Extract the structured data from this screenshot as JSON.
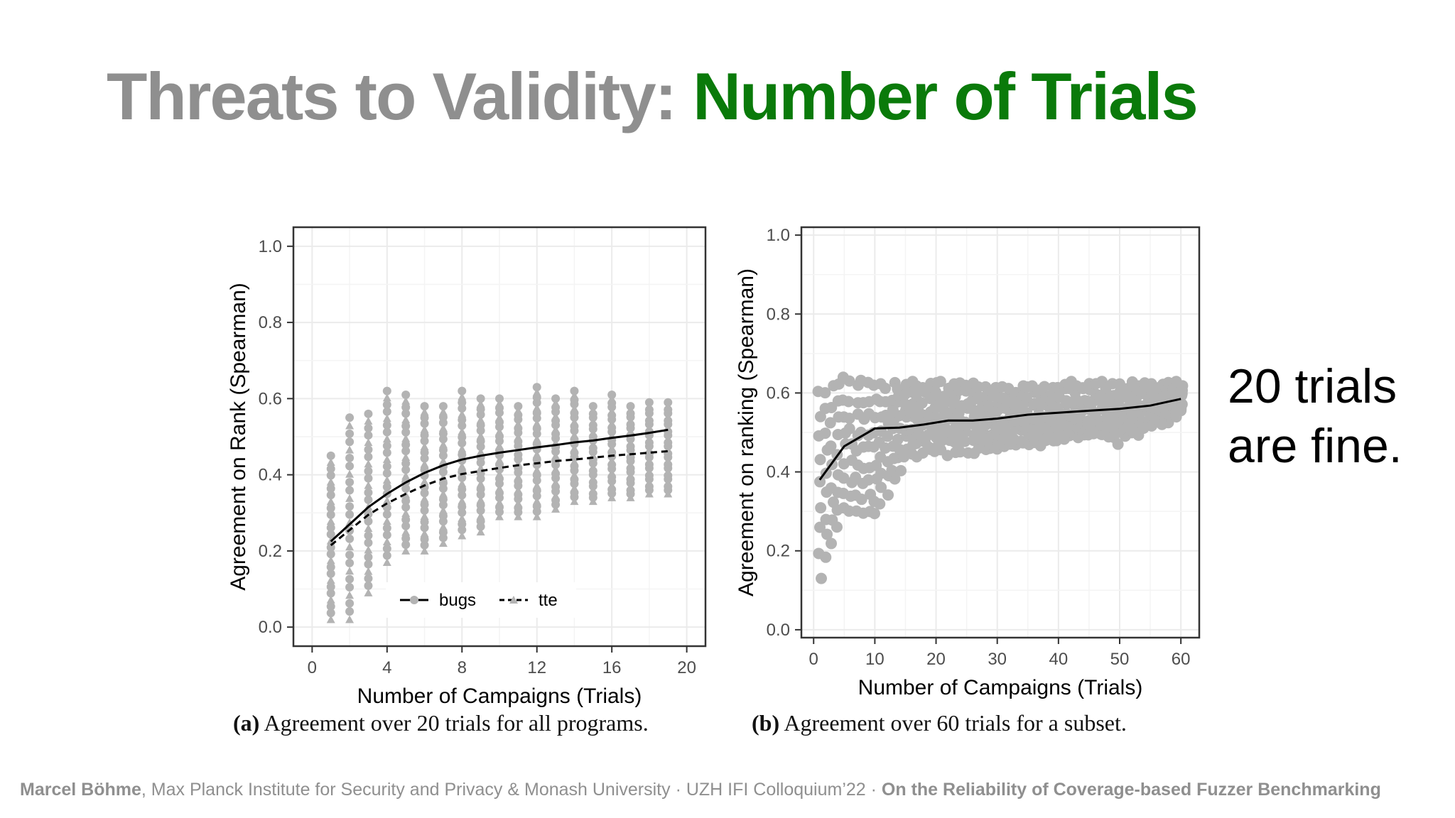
{
  "title": {
    "part1": "Threats to Validity: ",
    "part2": "Number of Trials"
  },
  "callout": {
    "line1": "20 trials",
    "line2": "are fine."
  },
  "captions": [
    {
      "label": "(a)",
      "text": " Agreement over 20 trials for all programs."
    },
    {
      "label": "(b)",
      "text": " Agreement over 60 trials for a subset."
    }
  ],
  "footer": {
    "author": "Marcel Böhme",
    "affiliation": ", Max Planck Institute for Security and Privacy & Monash University · UZH IFI Colloquium’22 · ",
    "talk": "On the Reliability of Coverage-based Fuzzer Benchmarking"
  },
  "colors": {
    "title_grey": "#8f8f8f",
    "title_green": "#0a7a0a",
    "points": "#b3b3b3",
    "lines": "#000000"
  },
  "chart_data": [
    {
      "type": "scatter",
      "xlabel": "Number of Campaigns (Trials)",
      "ylabel": "Agreement on Rank (Spearman)",
      "xlim": [
        -1,
        21
      ],
      "ylim": [
        -0.05,
        1.05
      ],
      "xticks": [
        0,
        4,
        8,
        12,
        16,
        20
      ],
      "yticks": [
        0.0,
        0.2,
        0.4,
        0.6,
        0.8,
        1.0
      ],
      "grid": true,
      "legend": "bottom-center",
      "points": {
        "x": [
          1,
          2,
          3,
          4,
          5,
          6,
          7,
          8,
          9,
          10,
          11,
          12,
          13,
          14,
          15,
          16,
          17,
          18,
          19
        ],
        "min": [
          0.02,
          0.02,
          0.09,
          0.17,
          0.2,
          0.2,
          0.22,
          0.24,
          0.25,
          0.29,
          0.29,
          0.29,
          0.31,
          0.33,
          0.33,
          0.34,
          0.34,
          0.35,
          0.35
        ],
        "max": [
          0.45,
          0.55,
          0.56,
          0.62,
          0.61,
          0.58,
          0.58,
          0.62,
          0.6,
          0.6,
          0.58,
          0.63,
          0.6,
          0.62,
          0.58,
          0.61,
          0.58,
          0.59,
          0.59
        ]
      },
      "series": [
        {
          "name": "bugs",
          "style": "solid",
          "x": [
            1,
            2,
            3,
            4,
            5,
            6,
            7,
            8,
            9,
            10,
            11,
            12,
            13,
            14,
            15,
            16,
            17,
            18,
            19
          ],
          "y": [
            0.225,
            0.27,
            0.315,
            0.35,
            0.38,
            0.405,
            0.425,
            0.44,
            0.45,
            0.458,
            0.465,
            0.472,
            0.478,
            0.485,
            0.49,
            0.497,
            0.503,
            0.51,
            0.518
          ]
        },
        {
          "name": "tte",
          "style": "dashed",
          "x": [
            1,
            2,
            3,
            4,
            5,
            6,
            7,
            8,
            9,
            10,
            11,
            12,
            13,
            14,
            15,
            16,
            17,
            18,
            19
          ],
          "y": [
            0.215,
            0.255,
            0.295,
            0.325,
            0.35,
            0.372,
            0.39,
            0.402,
            0.41,
            0.418,
            0.425,
            0.43,
            0.436,
            0.44,
            0.445,
            0.45,
            0.454,
            0.458,
            0.462
          ]
        }
      ]
    },
    {
      "type": "scatter",
      "xlabel": "Number of Campaigns (Trials)",
      "ylabel": "Agreement on ranking (Spearman)",
      "xlim": [
        -2,
        63
      ],
      "ylim": [
        -0.02,
        1.02
      ],
      "xticks": [
        0,
        10,
        20,
        30,
        40,
        50,
        60
      ],
      "yticks": [
        0.0,
        0.2,
        0.4,
        0.6,
        0.8,
        1.0
      ],
      "grid": true,
      "points": {
        "x": [
          1,
          5,
          10,
          15,
          20,
          25,
          30,
          35,
          40,
          45,
          50,
          55,
          60
        ],
        "min": [
          0.14,
          0.3,
          0.29,
          0.44,
          0.45,
          0.45,
          0.46,
          0.47,
          0.48,
          0.49,
          0.48,
          0.51,
          0.55
        ],
        "max": [
          0.6,
          0.63,
          0.62,
          0.62,
          0.62,
          0.62,
          0.61,
          0.61,
          0.62,
          0.62,
          0.62,
          0.62,
          0.62
        ]
      },
      "series": [
        {
          "style": "solid",
          "x": [
            1,
            5,
            10,
            14,
            18,
            22,
            26,
            30,
            35,
            40,
            45,
            50,
            55,
            60
          ],
          "y": [
            0.38,
            0.465,
            0.51,
            0.512,
            0.52,
            0.53,
            0.53,
            0.535,
            0.545,
            0.55,
            0.555,
            0.56,
            0.568,
            0.585
          ]
        }
      ]
    }
  ]
}
